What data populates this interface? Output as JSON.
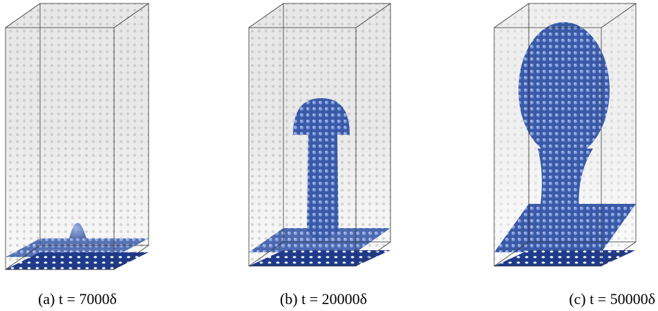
{
  "figure": {
    "panels": [
      {
        "caption": "(a) t = 7000δ"
      },
      {
        "caption": "(b) t = 20000δ"
      },
      {
        "caption": "(c) t = 50000δ"
      }
    ]
  }
}
